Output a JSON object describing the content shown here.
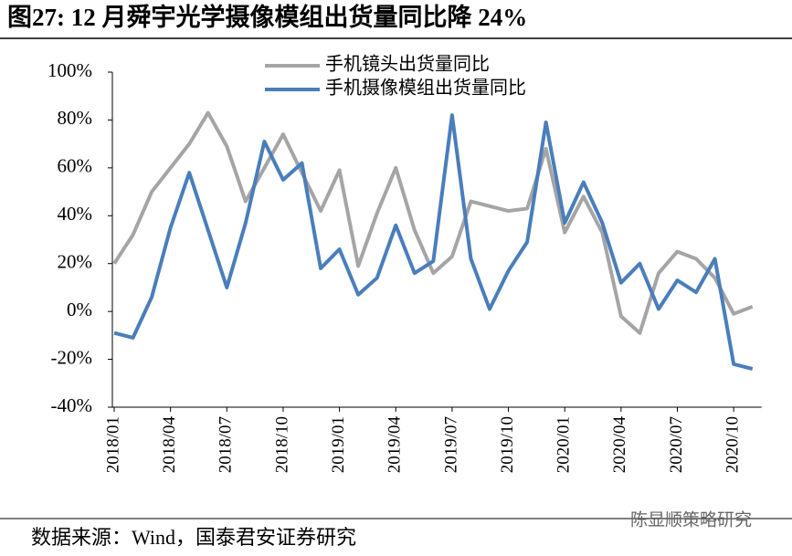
{
  "chart_data": {
    "type": "line",
    "title": "图27: 12 月舜宇光学摄像模组出货量同比降 24%",
    "source": "数据来源：Wind，国泰君安证券研究",
    "watermark": "陈显顺策略研究",
    "categories": [
      "2018/01",
      null,
      null,
      "2018/04",
      null,
      null,
      "2018/07",
      null,
      null,
      "2018/10",
      null,
      null,
      "2019/01",
      null,
      null,
      "2019/04",
      null,
      null,
      "2019/07",
      null,
      null,
      "2019/10",
      null,
      null,
      "2020/01",
      null,
      null,
      "2020/04",
      null,
      null,
      "2020/07",
      null,
      null,
      "2020/10",
      null
    ],
    "series": [
      {
        "name": "手机镜头出货量同比",
        "color": "#a5a5a5",
        "values": [
          20,
          32,
          50,
          60,
          70,
          83,
          69,
          46,
          60,
          74,
          58,
          42,
          59,
          19,
          41,
          60,
          34,
          16,
          23,
          46,
          44,
          42,
          43,
          68,
          33,
          48,
          33,
          -2,
          -9,
          16,
          25,
          22,
          14,
          -1,
          2
        ]
      },
      {
        "name": "手机摄像模组出货量同比",
        "color": "#4a7ebb",
        "values": [
          -9,
          -11,
          6,
          35,
          58,
          34,
          10,
          37,
          71,
          55,
          62,
          18,
          26,
          7,
          14,
          36,
          16,
          21,
          82,
          22,
          1,
          17,
          29,
          79,
          37,
          54,
          37,
          12,
          20,
          1,
          13,
          8,
          22,
          -22,
          -24
        ]
      }
    ],
    "ylim": [
      -40,
      100
    ],
    "yticks": [
      {
        "value": -40,
        "label": "-40%"
      },
      {
        "value": -20,
        "label": "-20%"
      },
      {
        "value": 0,
        "label": "0%"
      },
      {
        "value": 20,
        "label": "20%"
      },
      {
        "value": 40,
        "label": "40%"
      },
      {
        "value": 60,
        "label": "60%"
      },
      {
        "value": 80,
        "label": "80%"
      },
      {
        "value": 100,
        "label": "100%"
      }
    ],
    "legend": "top"
  }
}
